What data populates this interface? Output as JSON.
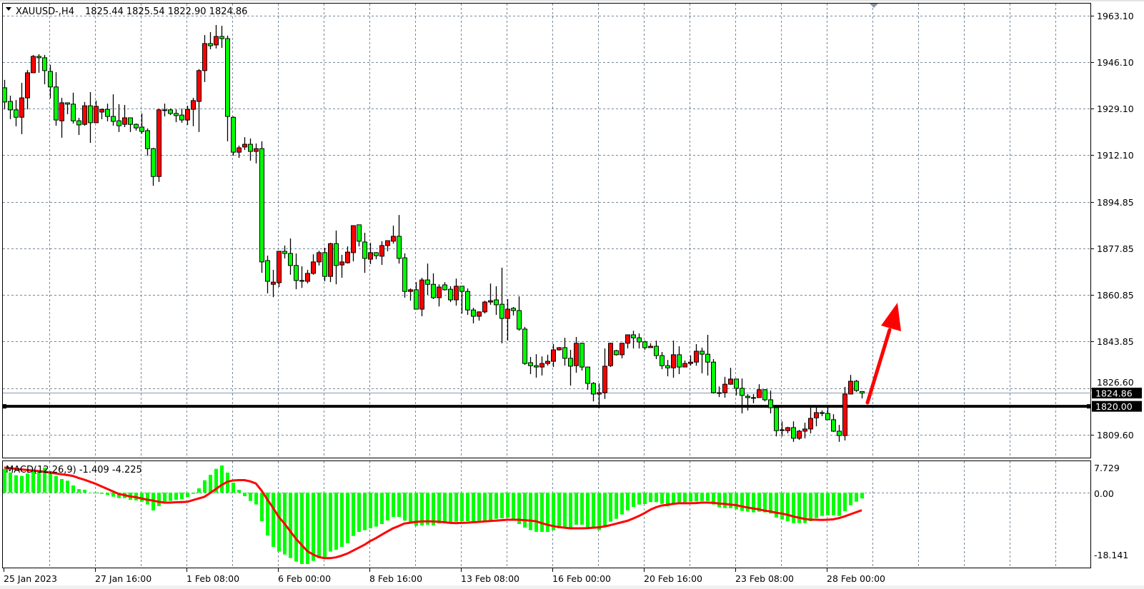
{
  "header": {
    "symbol": "XAUUSD-,H4",
    "ohlc": "1825.44 1825.54 1822.90 1824.86"
  },
  "indicator": {
    "label": "MACD(12,26,9) -1.409 -4.225"
  },
  "price_axis": {
    "ticks": [
      "1963.10",
      "1946.10",
      "1929.10",
      "1912.10",
      "1894.85",
      "1877.85",
      "1860.85",
      "1843.85",
      "1826.60",
      "1809.60"
    ],
    "current_price": "1824.86",
    "line_price": "1820.00"
  },
  "macd_axis": {
    "ticks": [
      "7.729",
      "0.00",
      "-18.141"
    ]
  },
  "time_axis": {
    "labels": [
      "25 Jan 2023",
      "27 Jan 16:00",
      "1 Feb 08:00",
      "6 Feb 00:00",
      "8 Feb 16:00",
      "13 Feb 08:00",
      "16 Feb 00:00",
      "20 Feb 16:00",
      "23 Feb 08:00",
      "28 Feb 00:00"
    ]
  },
  "colors": {
    "bull": "#ff0000",
    "bear": "#00ff00",
    "outline": "#000000",
    "grid": "#778899",
    "histogram": "#00ff00",
    "signal": "#ff0000",
    "arrow": "#ff0000",
    "hline": "#000000",
    "price_line": "#8c9aa8"
  },
  "chart_data": {
    "type": "candlestick",
    "symbol": "XAUUSD-",
    "timeframe": "H4",
    "ylim": [
      1801.0,
      1967.8
    ],
    "grid": true,
    "horizontal_line": 1820.0,
    "current_price": 1824.86,
    "annotation": "red up arrow",
    "ohlc": [
      [
        1936.7,
        1939.6,
        1928.8,
        1931.5
      ],
      [
        1931.7,
        1933.8,
        1925.2,
        1928.6
      ],
      [
        1928.6,
        1932.2,
        1922.6,
        1925.9
      ],
      [
        1925.9,
        1938.5,
        1919.7,
        1933.0
      ],
      [
        1933.0,
        1943.2,
        1928.8,
        1942.2
      ],
      [
        1942.2,
        1948.7,
        1942.2,
        1948.2
      ],
      [
        1948.2,
        1949.0,
        1942.2,
        1947.7
      ],
      [
        1947.7,
        1948.7,
        1938.0,
        1943.0
      ],
      [
        1942.7,
        1945.1,
        1932.8,
        1937.0
      ],
      [
        1937.0,
        1942.4,
        1922.8,
        1924.9
      ],
      [
        1924.6,
        1933.0,
        1918.4,
        1931.2
      ],
      [
        1931.2,
        1931.2,
        1927.0,
        1930.7
      ],
      [
        1930.7,
        1934.9,
        1923.6,
        1924.6
      ],
      [
        1924.6,
        1925.7,
        1919.4,
        1923.1
      ],
      [
        1923.3,
        1931.5,
        1922.8,
        1930.1
      ],
      [
        1930.1,
        1935.1,
        1916.5,
        1923.9
      ],
      [
        1923.9,
        1932.0,
        1923.9,
        1929.9
      ],
      [
        1927.8,
        1929.1,
        1925.2,
        1928.8
      ],
      [
        1928.8,
        1930.9,
        1924.4,
        1926.2
      ],
      [
        1926.2,
        1934.3,
        1922.8,
        1924.4
      ],
      [
        1924.6,
        1930.7,
        1920.5,
        1922.8
      ],
      [
        1923.3,
        1930.4,
        1922.3,
        1925.7
      ],
      [
        1925.7,
        1925.7,
        1920.5,
        1923.3
      ],
      [
        1923.3,
        1923.6,
        1921.0,
        1922.0
      ],
      [
        1922.3,
        1927.3,
        1919.9,
        1920.7
      ],
      [
        1921.0,
        1921.8,
        1911.8,
        1914.4
      ],
      [
        1914.4,
        1914.7,
        1900.8,
        1904.2
      ],
      [
        1904.2,
        1929.1,
        1902.2,
        1928.6
      ],
      [
        1928.6,
        1930.9,
        1926.2,
        1928.6
      ],
      [
        1928.6,
        1929.1,
        1926.7,
        1927.3
      ],
      [
        1927.3,
        1928.8,
        1924.1,
        1926.5
      ],
      [
        1926.7,
        1929.1,
        1923.9,
        1924.9
      ],
      [
        1924.9,
        1930.1,
        1923.1,
        1928.8
      ],
      [
        1928.8,
        1933.0,
        1922.6,
        1932.0
      ],
      [
        1931.7,
        1943.5,
        1920.5,
        1943.0
      ],
      [
        1943.0,
        1956.0,
        1938.8,
        1952.9
      ],
      [
        1952.9,
        1957.1,
        1950.8,
        1952.1
      ],
      [
        1952.4,
        1959.7,
        1951.1,
        1955.5
      ],
      [
        1955.5,
        1959.4,
        1951.3,
        1954.7
      ],
      [
        1954.7,
        1955.8,
        1917.1,
        1926.2
      ],
      [
        1925.9,
        1926.2,
        1911.8,
        1913.1
      ],
      [
        1913.1,
        1915.5,
        1911.0,
        1914.7
      ],
      [
        1915.0,
        1918.6,
        1913.9,
        1916.0
      ],
      [
        1916.0,
        1918.1,
        1910.0,
        1913.4
      ],
      [
        1913.4,
        1916.3,
        1909.0,
        1914.4
      ],
      [
        1914.4,
        1917.1,
        1868.9,
        1872.9
      ],
      [
        1873.4,
        1875.2,
        1861.4,
        1865.8
      ],
      [
        1864.7,
        1870.0,
        1860.0,
        1865.5
      ],
      [
        1865.3,
        1876.8,
        1863.7,
        1876.8
      ],
      [
        1876.8,
        1878.9,
        1874.2,
        1876.0
      ],
      [
        1876.0,
        1881.5,
        1868.2,
        1871.6
      ],
      [
        1871.6,
        1876.0,
        1862.9,
        1866.1
      ],
      [
        1866.1,
        1871.3,
        1863.4,
        1866.1
      ],
      [
        1865.8,
        1870.0,
        1865.0,
        1868.7
      ],
      [
        1868.7,
        1875.7,
        1868.2,
        1872.9
      ],
      [
        1872.9,
        1877.0,
        1871.6,
        1876.3
      ],
      [
        1876.3,
        1878.1,
        1865.8,
        1867.6
      ],
      [
        1867.6,
        1879.9,
        1865.5,
        1879.6
      ],
      [
        1879.6,
        1884.4,
        1864.7,
        1871.6
      ],
      [
        1871.8,
        1875.5,
        1867.1,
        1872.9
      ],
      [
        1872.6,
        1878.6,
        1872.3,
        1876.5
      ],
      [
        1876.3,
        1886.2,
        1873.1,
        1886.2
      ],
      [
        1886.5,
        1886.5,
        1878.6,
        1880.5
      ],
      [
        1880.2,
        1883.6,
        1868.9,
        1874.2
      ],
      [
        1873.9,
        1879.9,
        1872.1,
        1876.3
      ],
      [
        1876.3,
        1876.5,
        1873.9,
        1875.2
      ],
      [
        1875.0,
        1880.5,
        1871.8,
        1878.9
      ],
      [
        1878.9,
        1880.7,
        1876.8,
        1880.7
      ],
      [
        1880.5,
        1886.2,
        1879.6,
        1882.3
      ],
      [
        1882.3,
        1890.1,
        1872.3,
        1874.2
      ],
      [
        1874.4,
        1876.0,
        1859.8,
        1862.1
      ],
      [
        1862.1,
        1863.2,
        1858.7,
        1862.7
      ],
      [
        1862.7,
        1865.5,
        1855.6,
        1855.6
      ],
      [
        1855.6,
        1867.1,
        1853.0,
        1866.3
      ],
      [
        1866.3,
        1872.3,
        1860.8,
        1864.7
      ],
      [
        1864.7,
        1868.7,
        1859.3,
        1859.8
      ],
      [
        1859.8,
        1864.7,
        1856.6,
        1863.7
      ],
      [
        1864.5,
        1865.5,
        1862.4,
        1862.7
      ],
      [
        1862.9,
        1864.0,
        1858.2,
        1859.0
      ],
      [
        1859.0,
        1866.8,
        1856.9,
        1864.0
      ],
      [
        1864.0,
        1864.0,
        1854.0,
        1862.1
      ],
      [
        1862.1,
        1863.2,
        1853.5,
        1855.3
      ],
      [
        1855.3,
        1856.1,
        1850.4,
        1853.0
      ],
      [
        1853.0,
        1854.8,
        1851.4,
        1854.6
      ],
      [
        1854.6,
        1858.7,
        1854.0,
        1858.2
      ],
      [
        1858.2,
        1865.0,
        1857.2,
        1858.7
      ],
      [
        1859.0,
        1864.0,
        1853.5,
        1857.2
      ],
      [
        1857.4,
        1870.8,
        1843.1,
        1852.2
      ],
      [
        1852.2,
        1859.3,
        1844.1,
        1855.6
      ],
      [
        1855.9,
        1856.4,
        1853.3,
        1855.1
      ],
      [
        1855.1,
        1860.3,
        1847.7,
        1848.3
      ],
      [
        1848.3,
        1849.1,
        1835.2,
        1835.7
      ],
      [
        1836.0,
        1838.1,
        1831.8,
        1834.9
      ],
      [
        1834.9,
        1839.1,
        1830.5,
        1834.4
      ],
      [
        1834.4,
        1838.3,
        1831.3,
        1835.7
      ],
      [
        1835.7,
        1838.9,
        1834.9,
        1836.5
      ],
      [
        1836.5,
        1842.8,
        1834.4,
        1840.7
      ],
      [
        1840.7,
        1841.7,
        1840.4,
        1841.5
      ],
      [
        1841.5,
        1845.1,
        1834.9,
        1837.6
      ],
      [
        1837.6,
        1840.7,
        1827.6,
        1834.7
      ],
      [
        1834.9,
        1845.4,
        1832.3,
        1843.1
      ],
      [
        1843.1,
        1843.3,
        1833.1,
        1834.4
      ],
      [
        1834.4,
        1834.4,
        1826.1,
        1828.4
      ],
      [
        1828.4,
        1828.9,
        1821.8,
        1824.5
      ],
      [
        1824.5,
        1828.4,
        1819.3,
        1825.0
      ],
      [
        1825.0,
        1841.2,
        1822.7,
        1834.7
      ],
      [
        1834.9,
        1843.3,
        1834.4,
        1843.1
      ],
      [
        1840.4,
        1840.7,
        1838.6,
        1838.9
      ],
      [
        1838.9,
        1843.3,
        1837.6,
        1843.1
      ],
      [
        1843.1,
        1846.2,
        1841.2,
        1846.2
      ],
      [
        1846.2,
        1847.7,
        1841.2,
        1845.1
      ],
      [
        1845.1,
        1846.7,
        1841.2,
        1843.6
      ],
      [
        1843.6,
        1844.1,
        1840.7,
        1841.5
      ],
      [
        1841.5,
        1843.1,
        1841.5,
        1842.0
      ],
      [
        1842.0,
        1844.1,
        1837.3,
        1838.6
      ],
      [
        1838.6,
        1839.9,
        1833.6,
        1834.9
      ],
      [
        1834.9,
        1837.0,
        1831.0,
        1834.1
      ],
      [
        1834.1,
        1844.1,
        1830.5,
        1838.9
      ],
      [
        1838.9,
        1842.0,
        1831.8,
        1834.4
      ],
      [
        1834.4,
        1836.8,
        1834.4,
        1835.7
      ],
      [
        1835.7,
        1838.6,
        1834.9,
        1836.2
      ],
      [
        1836.2,
        1842.8,
        1834.9,
        1840.2
      ],
      [
        1840.2,
        1841.5,
        1832.1,
        1839.1
      ],
      [
        1839.1,
        1846.2,
        1831.3,
        1836.2
      ],
      [
        1836.2,
        1837.3,
        1824.7,
        1825.0
      ],
      [
        1825.0,
        1827.3,
        1823.4,
        1825.0
      ],
      [
        1825.0,
        1830.8,
        1823.2,
        1828.1
      ],
      [
        1828.1,
        1834.1,
        1827.9,
        1830.0
      ],
      [
        1830.0,
        1830.0,
        1824.0,
        1826.6
      ],
      [
        1826.6,
        1830.2,
        1817.4,
        1824.0
      ],
      [
        1823.7,
        1824.5,
        1818.5,
        1823.2
      ],
      [
        1823.2,
        1824.5,
        1821.1,
        1823.2
      ],
      [
        1823.2,
        1828.1,
        1823.2,
        1826.1
      ],
      [
        1826.1,
        1826.3,
        1821.8,
        1822.4
      ],
      [
        1822.4,
        1825.8,
        1817.4,
        1819.5
      ],
      [
        1819.5,
        1819.5,
        1809.0,
        1811.1
      ],
      [
        1811.4,
        1814.5,
        1809.0,
        1811.4
      ],
      [
        1811.1,
        1812.5,
        1810.1,
        1812.2
      ],
      [
        1812.2,
        1814.5,
        1807.0,
        1808.3
      ],
      [
        1808.3,
        1811.4,
        1807.7,
        1810.9
      ],
      [
        1810.9,
        1814.0,
        1808.3,
        1811.7
      ],
      [
        1811.7,
        1819.8,
        1810.1,
        1815.6
      ],
      [
        1815.8,
        1819.8,
        1812.7,
        1817.7
      ],
      [
        1817.7,
        1818.5,
        1816.4,
        1817.4
      ],
      [
        1817.4,
        1819.8,
        1815.1,
        1815.1
      ],
      [
        1815.1,
        1817.1,
        1810.6,
        1810.9
      ],
      [
        1810.9,
        1813.2,
        1807.0,
        1809.3
      ],
      [
        1809.3,
        1827.1,
        1807.5,
        1824.5
      ],
      [
        1824.5,
        1831.5,
        1824.5,
        1829.2
      ],
      [
        1829.2,
        1829.7,
        1825.3,
        1825.8
      ],
      [
        1825.44,
        1825.54,
        1822.9,
        1824.86
      ]
    ],
    "macd": {
      "params": "12,26,9",
      "ylim": [
        -18.141,
        7.729
      ],
      "histogram": [
        5.7,
        4.84,
        4.16,
        3.99,
        4.56,
        5.13,
        5.24,
        5.98,
        5.13,
        3.99,
        3.25,
        2.85,
        1.71,
        0.85,
        0.68,
        0,
        -0.17,
        -0.28,
        -0.57,
        -0.97,
        -1.31,
        -1.31,
        -1.71,
        -1.88,
        -2.17,
        -2.85,
        -4.27,
        -3.25,
        -2.11,
        -1.99,
        -1.71,
        -1.54,
        -1.03,
        -0.28,
        1.03,
        2.96,
        4.27,
        5.7,
        6.5,
        4.79,
        2.39,
        0.68,
        -0.85,
        -2.0,
        -2.85,
        -6.84,
        -10.26,
        -12.99,
        -14.13,
        -14.81,
        -15.67,
        -16.52,
        -17.09,
        -17.09,
        -16.35,
        -15.67,
        -15.38,
        -14.13,
        -13.68,
        -12.99,
        -12.08,
        -10.37,
        -9.4,
        -9.0,
        -8.55,
        -8.15,
        -7.52,
        -6.67,
        -5.81,
        -5.81,
        -6.72,
        -7.12,
        -7.98,
        -7.81,
        -7.69,
        -7.81,
        -7.41,
        -7.29,
        -7.12,
        -6.95,
        -6.84,
        -6.84,
        -6.84,
        -6.72,
        -6.72,
        -6.55,
        -6.27,
        -6.15,
        -5.98,
        -6.38,
        -7.52,
        -8.38,
        -9.0,
        -9.4,
        -9.4,
        -9.4,
        -9.0,
        -8.55,
        -8.38,
        -8.55,
        -7.69,
        -7.69,
        -8.26,
        -8.26,
        -9.0,
        -7.98,
        -6.95,
        -6.27,
        -5.24,
        -4.27,
        -3.42,
        -2.85,
        -2.74,
        -2.28,
        -2.28,
        -2.68,
        -3.3,
        -2.85,
        -2.56,
        -2.28,
        -2.17,
        -2.1,
        -2.0,
        -2.0,
        -2.85,
        -3.53,
        -3.7,
        -3.7,
        -3.99,
        -4.39,
        -4.56,
        -4.73,
        -4.56,
        -4.73,
        -5.01,
        -5.98,
        -6.44,
        -6.84,
        -7.29,
        -7.29,
        -7.29,
        -6.84,
        -6.1,
        -5.58,
        -5.41,
        -5.41,
        -5.58,
        -4.44,
        -3.02,
        -2.17,
        -1.409
      ],
      "signal": [
        6.0,
        5.85,
        5.7,
        5.55,
        5.4,
        5.3,
        5.15,
        5.0,
        4.8,
        4.6,
        4.4,
        4.2,
        4.0,
        3.5,
        3.1,
        2.6,
        2.1,
        1.5,
        0.9,
        0.3,
        -0.3,
        -0.6,
        -0.9,
        -1.1,
        -1.4,
        -1.7,
        -1.9,
        -2.2,
        -2.4,
        -2.4,
        -2.3,
        -2.25,
        -2.2,
        -1.8,
        -1.4,
        -1.0,
        -0.1,
        0.85,
        1.8,
        2.6,
        2.9,
        3.0,
        3.0,
        2.7,
        2.2,
        0.5,
        -1.6,
        -3.6,
        -5.8,
        -7.4,
        -9.2,
        -11.0,
        -12.5,
        -14.0,
        -14.8,
        -15.4,
        -15.7,
        -15.7,
        -15.5,
        -15.1,
        -14.6,
        -13.9,
        -13.2,
        -12.5,
        -11.6,
        -10.9,
        -10.1,
        -9.3,
        -8.55,
        -8.0,
        -7.4,
        -7.2,
        -7.0,
        -6.9,
        -6.85,
        -6.9,
        -6.95,
        -7.1,
        -7.25,
        -7.3,
        -7.25,
        -7.2,
        -7.1,
        -7.0,
        -6.9,
        -6.8,
        -6.7,
        -6.6,
        -6.5,
        -6.5,
        -6.5,
        -6.6,
        -6.7,
        -6.85,
        -7.3,
        -7.7,
        -8.0,
        -8.25,
        -8.4,
        -8.55,
        -8.55,
        -8.55,
        -8.5,
        -8.4,
        -8.3,
        -8.1,
        -7.8,
        -7.45,
        -7.1,
        -6.75,
        -6.2,
        -5.6,
        -4.9,
        -4.1,
        -3.5,
        -3.1,
        -2.9,
        -2.7,
        -2.55,
        -2.55,
        -2.55,
        -2.5,
        -2.4,
        -2.4,
        -2.45,
        -2.6,
        -2.7,
        -2.85,
        -3.0,
        -3.3,
        -3.55,
        -3.8,
        -4.0,
        -4.3,
        -4.5,
        -4.8,
        -5.0,
        -5.3,
        -5.7,
        -6.0,
        -6.3,
        -6.45,
        -6.5,
        -6.55,
        -6.5,
        -6.4,
        -6.1,
        -5.7,
        -5.2,
        -4.7,
        -4.225
      ]
    }
  }
}
